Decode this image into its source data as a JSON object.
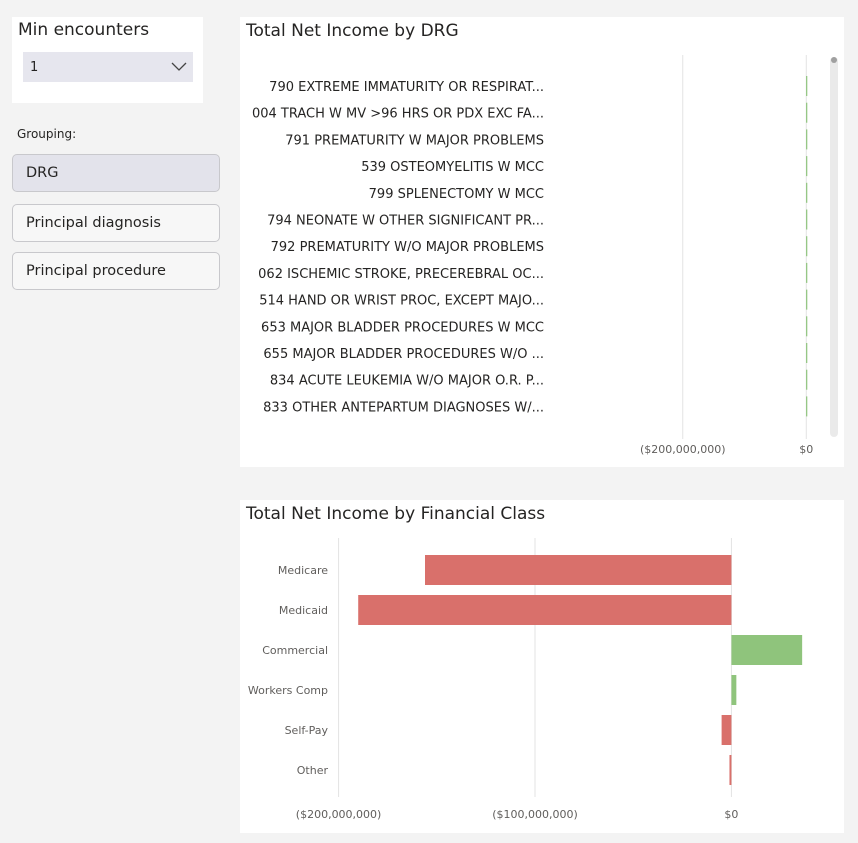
{
  "slicer": {
    "title": "Min encounters",
    "selected_value": "1"
  },
  "grouping": {
    "label": "Grouping:",
    "buttons": [
      {
        "label": "DRG",
        "active": true
      },
      {
        "label": "Principal diagnosis",
        "active": false
      },
      {
        "label": "Principal procedure",
        "active": false
      }
    ]
  },
  "colors": {
    "negative": "#d9706b",
    "positive": "#8fc47c",
    "grid": "#e3e3e3",
    "axis_text": "#605e5c",
    "label_text": "#252423"
  },
  "chart_data": [
    {
      "type": "bar",
      "orientation": "horizontal",
      "title": "Total Net Income by DRG",
      "categories": [
        "790 EXTREME IMMATURITY OR RESPIRAT...",
        "004 TRACH W MV >96 HRS OR PDX EXC FA...",
        "791 PREMATURITY W MAJOR PROBLEMS",
        "539 OSTEOMYELITIS W MCC",
        "799 SPLENECTOMY W MCC",
        "794 NEONATE W OTHER SIGNIFICANT PR...",
        "792 PREMATURITY W/O MAJOR PROBLEMS",
        "062 ISCHEMIC STROKE, PRECEREBRAL OC...",
        "514 HAND OR WRIST PROC, EXCEPT MAJO...",
        "653 MAJOR BLADDER PROCEDURES W MCC",
        "655 MAJOR BLADDER PROCEDURES W/O ...",
        "834 ACUTE LEUKEMIA W/O MAJOR O.R. P...",
        "833 OTHER ANTEPARTUM DIAGNOSES W/..."
      ],
      "values": [
        0,
        0,
        0,
        0,
        0,
        0,
        0,
        0,
        0,
        0,
        0,
        0,
        0
      ],
      "xlim": [
        -300000000,
        40000000
      ],
      "xticks": [
        {
          "value": -200000000,
          "label": "($200,000,000)"
        },
        {
          "value": 0,
          "label": "$0"
        }
      ]
    },
    {
      "type": "bar",
      "orientation": "horizontal",
      "title": "Total Net Income by Financial Class",
      "categories": [
        "Medicare",
        "Medicaid",
        "Commercial",
        "Workers Comp",
        "Self-Pay",
        "Other"
      ],
      "values": [
        -156000000,
        -190000000,
        36000000,
        2500000,
        -5000000,
        -1000000
      ],
      "xlim": [
        -212000000,
        40000000
      ],
      "xticks": [
        {
          "value": -200000000,
          "label": "($200,000,000)"
        },
        {
          "value": -100000000,
          "label": "($100,000,000)"
        },
        {
          "value": 0,
          "label": "$0"
        }
      ]
    }
  ]
}
